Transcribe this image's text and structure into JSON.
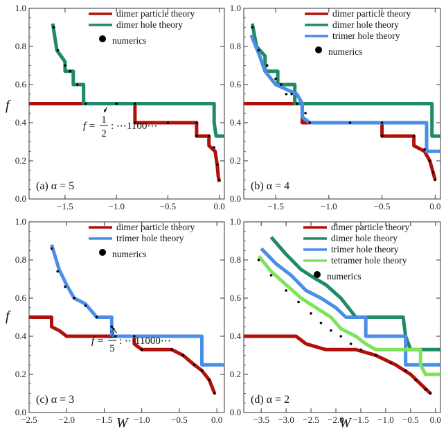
{
  "figure": {
    "y_axis_label": "f",
    "x_axis_label": "W"
  },
  "colors": {
    "dimer_particle": "#b0100a",
    "dimer_hole": "#1e8a66",
    "trimer_hole": "#4a8ee8",
    "tetramer_hole": "#7fe35a",
    "numerics": "#000000"
  },
  "chart_data": [
    {
      "type": "line",
      "panel_label": "(a) α = 5",
      "xlim": [
        -1.85,
        0.05
      ],
      "ylim": [
        0.0,
        1.0
      ],
      "xticks": [
        "−1.5",
        "−1.0",
        "−0.5",
        "0.0"
      ],
      "yticks": [
        "0.0",
        "0.2",
        "0.4",
        "0.6",
        "0.8",
        "1.0"
      ],
      "annotation": {
        "text_prefix": "f = ",
        "num": "1",
        "den": "2",
        "text_suffix": ": ⋯1100⋯",
        "points_to": [
          -1.07,
          0.5
        ]
      },
      "legend": [
        "dimer particle theory",
        "dimer hole theory",
        "numerics"
      ],
      "series": [
        {
          "name": "dimer particle theory",
          "points": [
            [
              -1.85,
              0.5
            ],
            [
              -0.82,
              0.5
            ],
            [
              -0.82,
              0.4
            ],
            [
              -0.22,
              0.4
            ],
            [
              -0.22,
              0.33
            ],
            [
              -0.1,
              0.33
            ],
            [
              -0.1,
              0.28
            ],
            [
              -0.04,
              0.25
            ],
            [
              -0.02,
              0.18
            ],
            [
              -0.01,
              0.12
            ],
            [
              0.0,
              0.09
            ]
          ]
        },
        {
          "name": "dimer hole theory",
          "points": [
            [
              -1.62,
              0.92
            ],
            [
              -1.58,
              0.78
            ],
            [
              -1.5,
              0.72
            ],
            [
              -1.5,
              0.67
            ],
            [
              -1.42,
              0.67
            ],
            [
              -1.42,
              0.6
            ],
            [
              -1.32,
              0.6
            ],
            [
              -1.32,
              0.5
            ],
            [
              -0.05,
              0.5
            ],
            [
              -0.05,
              0.4
            ],
            [
              -0.03,
              0.33
            ],
            [
              0.05,
              0.33
            ]
          ]
        },
        {
          "name": "numerics",
          "points": [
            [
              -1.61,
              0.9
            ],
            [
              -1.57,
              0.78
            ],
            [
              -1.5,
              0.7
            ],
            [
              -1.45,
              0.67
            ],
            [
              -1.38,
              0.6
            ],
            [
              -1.3,
              0.5
            ],
            [
              -1.0,
              0.5
            ],
            [
              -0.82,
              0.5
            ],
            [
              -0.82,
              0.4
            ],
            [
              -0.5,
              0.4
            ],
            [
              -0.22,
              0.4
            ],
            [
              -0.22,
              0.33
            ],
            [
              -0.1,
              0.33
            ],
            [
              -0.05,
              0.27
            ],
            [
              -0.02,
              0.18
            ],
            [
              0.0,
              0.1
            ]
          ]
        }
      ]
    },
    {
      "type": "line",
      "panel_label": "(b) α = 4",
      "xlim": [
        -1.8,
        0.05
      ],
      "ylim": [
        0.0,
        1.0
      ],
      "xticks": [
        "−1.5",
        "−1.0",
        "−0.5",
        "0.0"
      ],
      "yticks": [
        "0.0",
        "0.2",
        "0.4",
        "0.6",
        "0.8",
        "1.0"
      ],
      "legend": [
        "dimer particle theory",
        "dimer hole theory",
        "trimer hole theory",
        "numerics"
      ],
      "series": [
        {
          "name": "dimer particle theory",
          "points": [
            [
              -1.8,
              0.5
            ],
            [
              -1.25,
              0.5
            ],
            [
              -1.25,
              0.4
            ],
            [
              -0.5,
              0.4
            ],
            [
              -0.5,
              0.33
            ],
            [
              -0.2,
              0.33
            ],
            [
              -0.2,
              0.28
            ],
            [
              -0.1,
              0.25
            ],
            [
              -0.05,
              0.2
            ],
            [
              -0.02,
              0.14
            ],
            [
              0.0,
              0.1
            ]
          ]
        },
        {
          "name": "dimer hole theory",
          "points": [
            [
              -1.72,
              0.92
            ],
            [
              -1.68,
              0.8
            ],
            [
              -1.6,
              0.75
            ],
            [
              -1.6,
              0.67
            ],
            [
              -1.48,
              0.67
            ],
            [
              -1.48,
              0.6
            ],
            [
              -1.32,
              0.6
            ],
            [
              -1.32,
              0.5
            ],
            [
              -0.03,
              0.5
            ],
            [
              -0.03,
              0.33
            ],
            [
              0.05,
              0.33
            ]
          ]
        },
        {
          "name": "trimer hole theory",
          "points": [
            [
              -1.73,
              0.86
            ],
            [
              -1.65,
              0.75
            ],
            [
              -1.6,
              0.67
            ],
            [
              -1.5,
              0.6
            ],
            [
              -1.3,
              0.55
            ],
            [
              -1.25,
              0.5
            ],
            [
              -1.25,
              0.43
            ],
            [
              -1.18,
              0.4
            ],
            [
              -0.5,
              0.4
            ],
            [
              -0.5,
              0.4
            ],
            [
              -0.08,
              0.4
            ],
            [
              -0.08,
              0.25
            ],
            [
              0.05,
              0.25
            ]
          ]
        },
        {
          "name": "numerics",
          "points": [
            [
              -1.72,
              0.9
            ],
            [
              -1.66,
              0.78
            ],
            [
              -1.58,
              0.7
            ],
            [
              -1.5,
              0.63
            ],
            [
              -1.45,
              0.6
            ],
            [
              -1.4,
              0.55
            ],
            [
              -1.35,
              0.55
            ],
            [
              -1.3,
              0.5
            ],
            [
              -1.22,
              0.45
            ],
            [
              -1.18,
              0.4
            ],
            [
              -0.8,
              0.4
            ],
            [
              -0.5,
              0.4
            ],
            [
              -0.5,
              0.33
            ],
            [
              -0.2,
              0.33
            ],
            [
              -0.1,
              0.26
            ],
            [
              -0.05,
              0.2
            ],
            [
              -0.02,
              0.14
            ],
            [
              0.0,
              0.1
            ]
          ]
        }
      ]
    },
    {
      "type": "line",
      "panel_label": "(c) α = 3",
      "xlim": [
        -2.5,
        0.1
      ],
      "ylim": [
        0.0,
        1.0
      ],
      "xticks": [
        "−2.5",
        "−2.0",
        "−1.5",
        "−1.0",
        "−0.5",
        "0.0"
      ],
      "yticks": [
        "0.0",
        "0.2",
        "0.4",
        "0.6",
        "0.8",
        "1.0"
      ],
      "annotation": {
        "text_prefix": "f = ",
        "num": "2",
        "den": "5",
        "text_suffix": ": ⋯11000⋯",
        "points_to": [
          -1.3,
          0.4
        ]
      },
      "legend": [
        "dimer particle theory",
        "trimer hole theory",
        "numerics"
      ],
      "series": [
        {
          "name": "dimer particle theory",
          "points": [
            [
              -2.5,
              0.5
            ],
            [
              -2.2,
              0.5
            ],
            [
              -2.2,
              0.45
            ],
            [
              -2.1,
              0.43
            ],
            [
              -2.0,
              0.4
            ],
            [
              -1.1,
              0.4
            ],
            [
              -1.1,
              0.36
            ],
            [
              -1.0,
              0.33
            ],
            [
              -0.6,
              0.33
            ],
            [
              -0.45,
              0.3
            ],
            [
              -0.3,
              0.25
            ],
            [
              -0.2,
              0.22
            ],
            [
              -0.1,
              0.17
            ],
            [
              -0.03,
              0.1
            ]
          ]
        },
        {
          "name": "trimer hole theory",
          "points": [
            [
              -2.2,
              0.88
            ],
            [
              -2.1,
              0.75
            ],
            [
              -2.0,
              0.67
            ],
            [
              -1.9,
              0.6
            ],
            [
              -1.75,
              0.57
            ],
            [
              -1.6,
              0.5
            ],
            [
              -1.4,
              0.5
            ],
            [
              -1.4,
              0.4
            ],
            [
              -0.2,
              0.4
            ],
            [
              -0.2,
              0.25
            ],
            [
              0.1,
              0.25
            ]
          ]
        },
        {
          "name": "numerics",
          "points": [
            [
              -2.2,
              0.86
            ],
            [
              -2.12,
              0.74
            ],
            [
              -2.02,
              0.66
            ],
            [
              -1.9,
              0.6
            ],
            [
              -1.75,
              0.56
            ],
            [
              -1.6,
              0.5
            ],
            [
              -1.4,
              0.45
            ],
            [
              -1.35,
              0.4
            ],
            [
              -1.1,
              0.4
            ],
            [
              -1.0,
              0.33
            ],
            [
              -0.6,
              0.33
            ],
            [
              -0.45,
              0.3
            ],
            [
              -0.3,
              0.25
            ],
            [
              -0.2,
              0.22
            ],
            [
              -0.1,
              0.17
            ],
            [
              -0.03,
              0.1
            ]
          ]
        }
      ]
    },
    {
      "type": "line",
      "panel_label": "(d) α = 2",
      "xlim": [
        -3.85,
        0.1
      ],
      "ylim": [
        0.0,
        1.0
      ],
      "xticks": [
        "−3.5",
        "−3.0",
        "−2.5",
        "−2.0",
        "−1.5",
        "−1.0",
        "−0.5",
        "0.0"
      ],
      "yticks": [
        "0.0",
        "0.2",
        "0.4",
        "0.6",
        "0.8",
        "1.0"
      ],
      "legend": [
        "dimer particle theory",
        "dimer hole theory",
        "trimer hole theory",
        "tetramer hole theory",
        "numerics"
      ],
      "series": [
        {
          "name": "dimer particle theory",
          "points": [
            [
              -3.85,
              0.4
            ],
            [
              -2.8,
              0.4
            ],
            [
              -2.6,
              0.36
            ],
            [
              -2.2,
              0.33
            ],
            [
              -1.6,
              0.33
            ],
            [
              -1.2,
              0.3
            ],
            [
              -0.8,
              0.25
            ],
            [
              -0.5,
              0.2
            ],
            [
              -0.3,
              0.15
            ],
            [
              -0.1,
              0.1
            ]
          ]
        },
        {
          "name": "dimer hole theory",
          "points": [
            [
              -3.3,
              0.92
            ],
            [
              -3.0,
              0.83
            ],
            [
              -2.7,
              0.75
            ],
            [
              -2.4,
              0.7
            ],
            [
              -2.2,
              0.67
            ],
            [
              -1.9,
              0.6
            ],
            [
              -1.6,
              0.5
            ],
            [
              -0.65,
              0.5
            ],
            [
              -0.6,
              0.4
            ],
            [
              -0.5,
              0.33
            ],
            [
              0.1,
              0.33
            ]
          ]
        },
        {
          "name": "trimer hole theory",
          "points": [
            [
              -3.5,
              0.86
            ],
            [
              -3.2,
              0.78
            ],
            [
              -2.9,
              0.72
            ],
            [
              -2.6,
              0.64
            ],
            [
              -2.3,
              0.6
            ],
            [
              -2.0,
              0.55
            ],
            [
              -1.8,
              0.5
            ],
            [
              -1.4,
              0.5
            ],
            [
              -1.4,
              0.4
            ],
            [
              -0.6,
              0.4
            ],
            [
              -0.6,
              0.25
            ],
            [
              0.1,
              0.25
            ]
          ]
        },
        {
          "name": "tetramer hole theory",
          "points": [
            [
              -3.55,
              0.82
            ],
            [
              -3.3,
              0.74
            ],
            [
              -3.0,
              0.67
            ],
            [
              -2.7,
              0.6
            ],
            [
              -2.4,
              0.55
            ],
            [
              -2.1,
              0.5
            ],
            [
              -1.9,
              0.44
            ],
            [
              -1.6,
              0.4
            ],
            [
              -1.4,
              0.36
            ],
            [
              -1.2,
              0.33
            ],
            [
              -0.3,
              0.33
            ],
            [
              -0.3,
              0.25
            ],
            [
              -0.2,
              0.2
            ],
            [
              0.1,
              0.2
            ]
          ]
        },
        {
          "name": "numerics",
          "points": [
            [
              -3.55,
              0.8
            ],
            [
              -3.3,
              0.72
            ],
            [
              -3.0,
              0.64
            ],
            [
              -2.75,
              0.58
            ],
            [
              -2.5,
              0.52
            ],
            [
              -2.3,
              0.47
            ],
            [
              -2.1,
              0.43
            ],
            [
              -1.9,
              0.4
            ],
            [
              -1.7,
              0.36
            ],
            [
              -1.5,
              0.33
            ],
            [
              -1.2,
              0.3
            ],
            [
              -0.9,
              0.26
            ],
            [
              -0.6,
              0.22
            ],
            [
              -0.4,
              0.17
            ],
            [
              -0.2,
              0.12
            ],
            [
              -0.1,
              0.1
            ]
          ]
        }
      ]
    }
  ]
}
